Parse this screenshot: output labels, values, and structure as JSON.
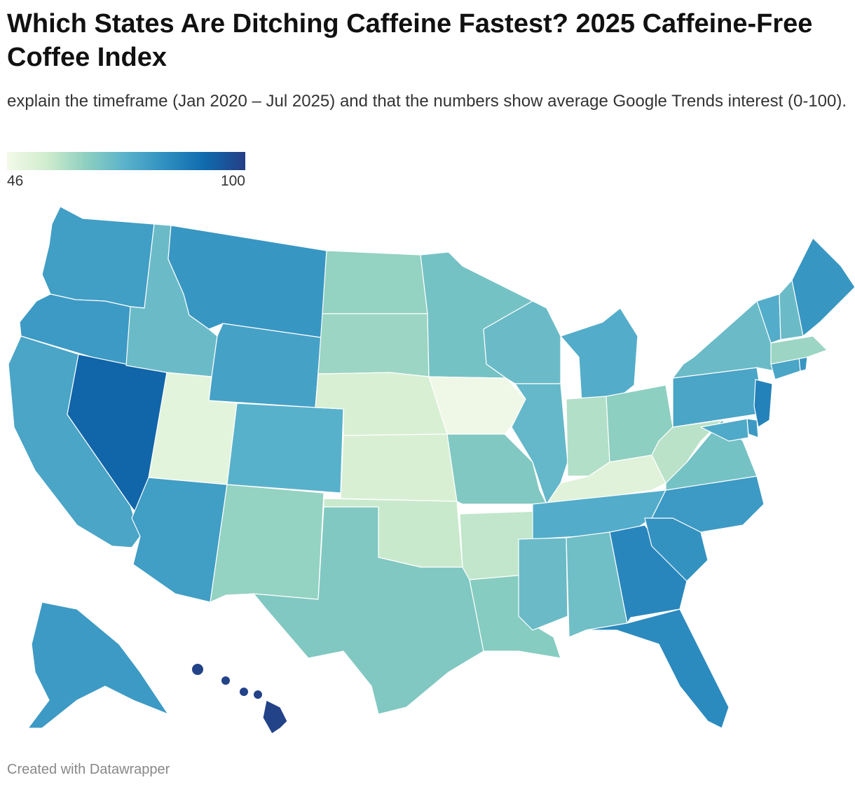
{
  "title": "Which States Are Ditching Caffeine Fastest? 2025 Caffeine-Free Coffee Index",
  "subtitle": "explain the timeframe (Jan 2020 – Jul 2025) and that the numbers show average Google Trends interest (0-100).",
  "legend": {
    "min_label": "46",
    "max_label": "100",
    "color_stops": [
      "#f3fae9",
      "#d0ecce",
      "#8dcfc0",
      "#58b1cb",
      "#2f8ec0",
      "#0f6aad",
      "#253e85"
    ]
  },
  "footer": "Created with Datawrapper",
  "chart_data": {
    "type": "choropleth",
    "title": "Which States Are Ditching Caffeine Fastest? 2025 Caffeine-Free Coffee Index",
    "scale": {
      "min": 46,
      "max": 100
    },
    "regions": [
      {
        "state": "Washington",
        "value": 78
      },
      {
        "state": "Oregon",
        "value": 79
      },
      {
        "state": "California",
        "value": 76
      },
      {
        "state": "Nevada",
        "value": 92
      },
      {
        "state": "Idaho",
        "value": 70
      },
      {
        "state": "Montana",
        "value": 80
      },
      {
        "state": "Wyoming",
        "value": 77
      },
      {
        "state": "Utah",
        "value": 50
      },
      {
        "state": "Arizona",
        "value": 78
      },
      {
        "state": "Colorado",
        "value": 73
      },
      {
        "state": "New Mexico",
        "value": 63
      },
      {
        "state": "North Dakota",
        "value": 63
      },
      {
        "state": "South Dakota",
        "value": 62
      },
      {
        "state": "Nebraska",
        "value": 53
      },
      {
        "state": "Kansas",
        "value": 53
      },
      {
        "state": "Oklahoma",
        "value": 56
      },
      {
        "state": "Texas",
        "value": 66
      },
      {
        "state": "Minnesota",
        "value": 68
      },
      {
        "state": "Iowa",
        "value": 47
      },
      {
        "state": "Missouri",
        "value": 66
      },
      {
        "state": "Arkansas",
        "value": 57
      },
      {
        "state": "Louisiana",
        "value": 65
      },
      {
        "state": "Wisconsin",
        "value": 70
      },
      {
        "state": "Illinois",
        "value": 71
      },
      {
        "state": "Michigan",
        "value": 74
      },
      {
        "state": "Indiana",
        "value": 59
      },
      {
        "state": "Ohio",
        "value": 64
      },
      {
        "state": "Kentucky",
        "value": 51
      },
      {
        "state": "Tennessee",
        "value": 74
      },
      {
        "state": "Mississippi",
        "value": 70
      },
      {
        "state": "Alabama",
        "value": 69
      },
      {
        "state": "Georgia",
        "value": 84
      },
      {
        "state": "Florida",
        "value": 83
      },
      {
        "state": "South Carolina",
        "value": 81
      },
      {
        "state": "North Carolina",
        "value": 79
      },
      {
        "state": "Virginia",
        "value": 68
      },
      {
        "state": "West Virginia",
        "value": 58
      },
      {
        "state": "Maryland",
        "value": 75
      },
      {
        "state": "Delaware",
        "value": 79
      },
      {
        "state": "Pennsylvania",
        "value": 76
      },
      {
        "state": "New Jersey",
        "value": 85
      },
      {
        "state": "New York",
        "value": 70
      },
      {
        "state": "Connecticut",
        "value": 76
      },
      {
        "state": "Rhode Island",
        "value": 80
      },
      {
        "state": "Massachusetts",
        "value": 62
      },
      {
        "state": "Vermont",
        "value": 74
      },
      {
        "state": "New Hampshire",
        "value": 70
      },
      {
        "state": "Maine",
        "value": 80
      },
      {
        "state": "Alaska",
        "value": 79
      },
      {
        "state": "Hawaii",
        "value": 99
      }
    ]
  }
}
